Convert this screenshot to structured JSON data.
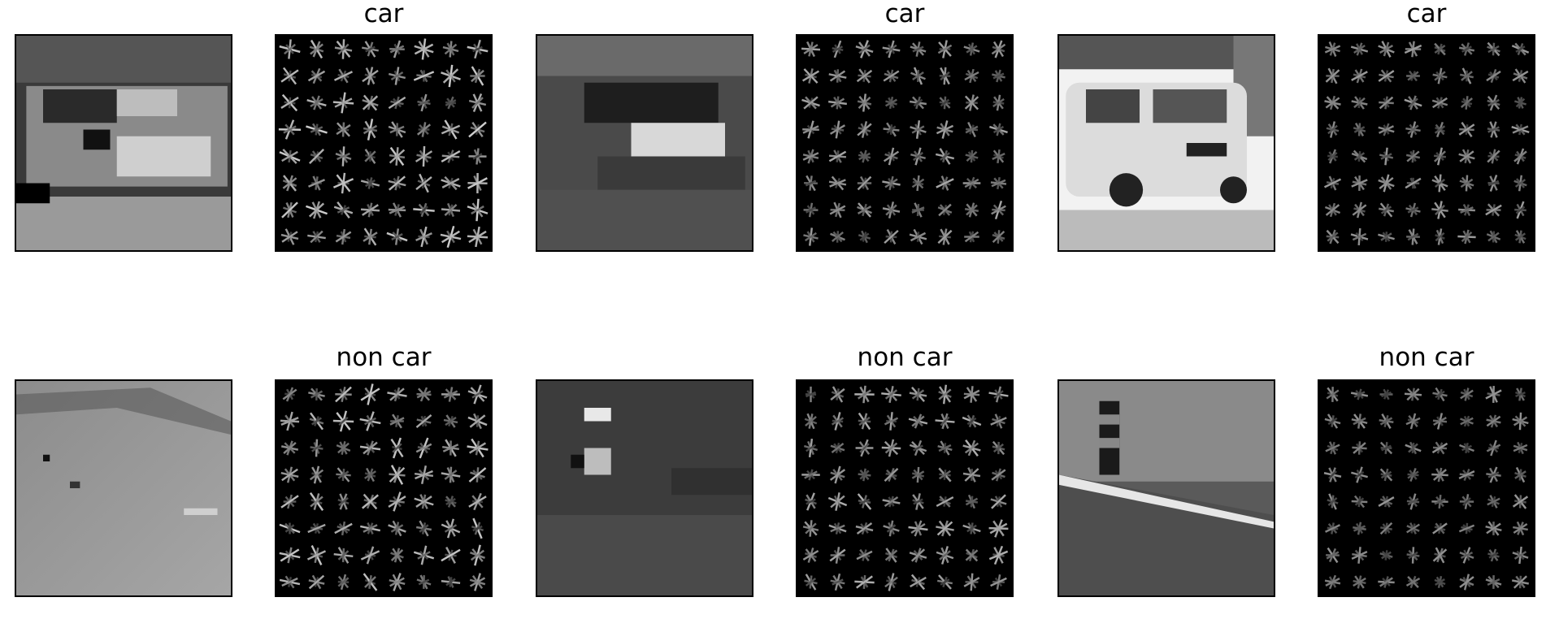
{
  "rows": [
    {
      "label": "car"
    },
    {
      "label": "non car"
    }
  ],
  "colors": {
    "background": "#ffffff",
    "hog_bg": "#000000",
    "border": "#000000"
  }
}
